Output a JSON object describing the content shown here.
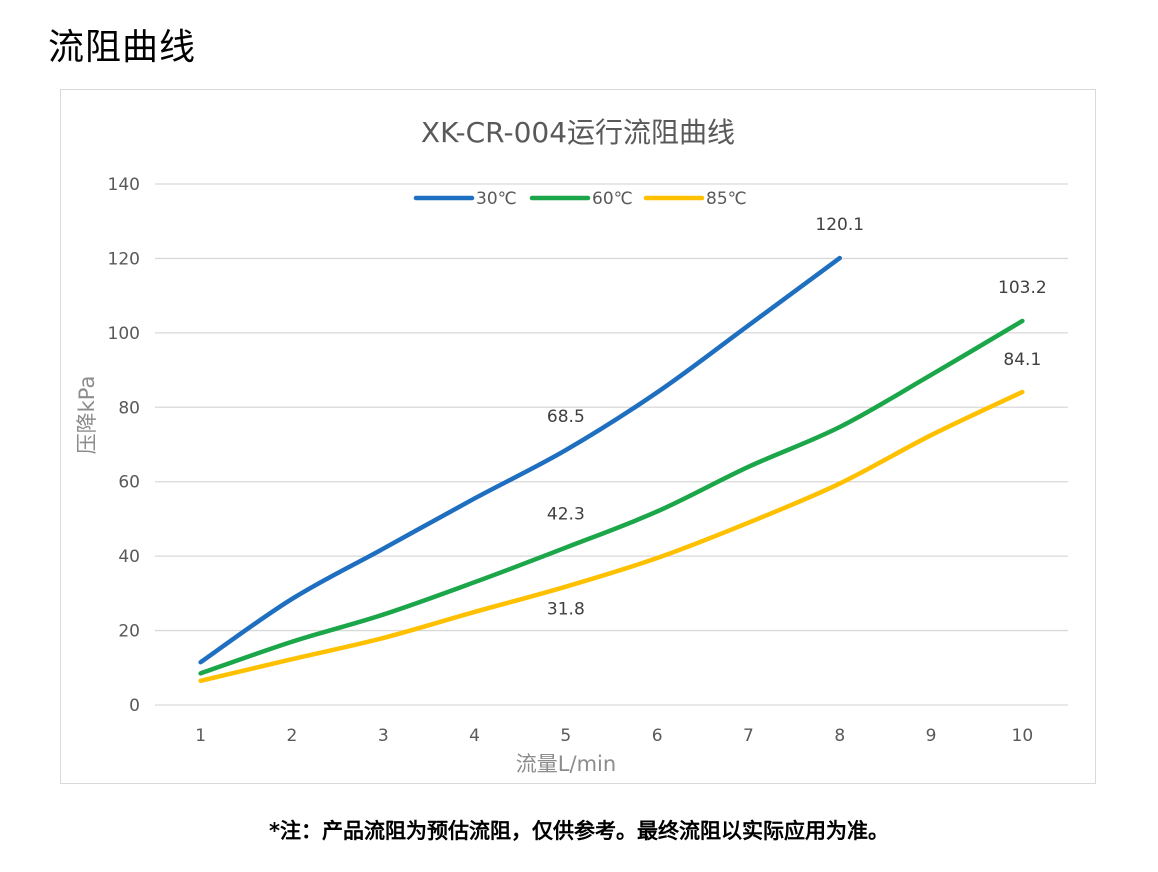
{
  "page": {
    "heading": "流阻曲线",
    "note": "*注：产品流阻为预估流阻，仅供参考。最终流阻以实际应用为准。"
  },
  "chart_data": {
    "type": "line",
    "title": "XK-CR-004运行流阻曲线",
    "xlabel": "流量L/min",
    "ylabel": "压降kPa",
    "categories": [
      1,
      2,
      3,
      4,
      5,
      6,
      7,
      8,
      9,
      10
    ],
    "ylim": [
      0,
      140
    ],
    "yticks": [
      0,
      20,
      40,
      60,
      80,
      100,
      120,
      140
    ],
    "grid": "horizontal",
    "legend_position": "top",
    "series": [
      {
        "name": "30℃",
        "color": "#1f6fc1",
        "values": [
          11.5,
          28.5,
          42,
          55.5,
          68.5,
          84,
          102,
          120.1,
          null,
          null
        ]
      },
      {
        "name": "60℃",
        "color": "#1ba64a",
        "values": [
          8.5,
          17,
          24.3,
          33,
          42.3,
          52,
          64,
          74.7,
          88.7,
          103.2
        ]
      },
      {
        "name": "85℃",
        "color": "#ffc000",
        "values": [
          6.5,
          12.3,
          18,
          25,
          31.8,
          39.5,
          49,
          59.5,
          72.5,
          84.1
        ]
      }
    ],
    "data_labels": [
      {
        "series": 0,
        "index": 4,
        "text": "68.5"
      },
      {
        "series": 0,
        "index": 7,
        "text": "120.1"
      },
      {
        "series": 1,
        "index": 4,
        "text": "42.3"
      },
      {
        "series": 1,
        "index": 9,
        "text": "103.2"
      },
      {
        "series": 2,
        "index": 4,
        "text": "31.8"
      },
      {
        "series": 2,
        "index": 9,
        "text": "84.1"
      }
    ]
  }
}
